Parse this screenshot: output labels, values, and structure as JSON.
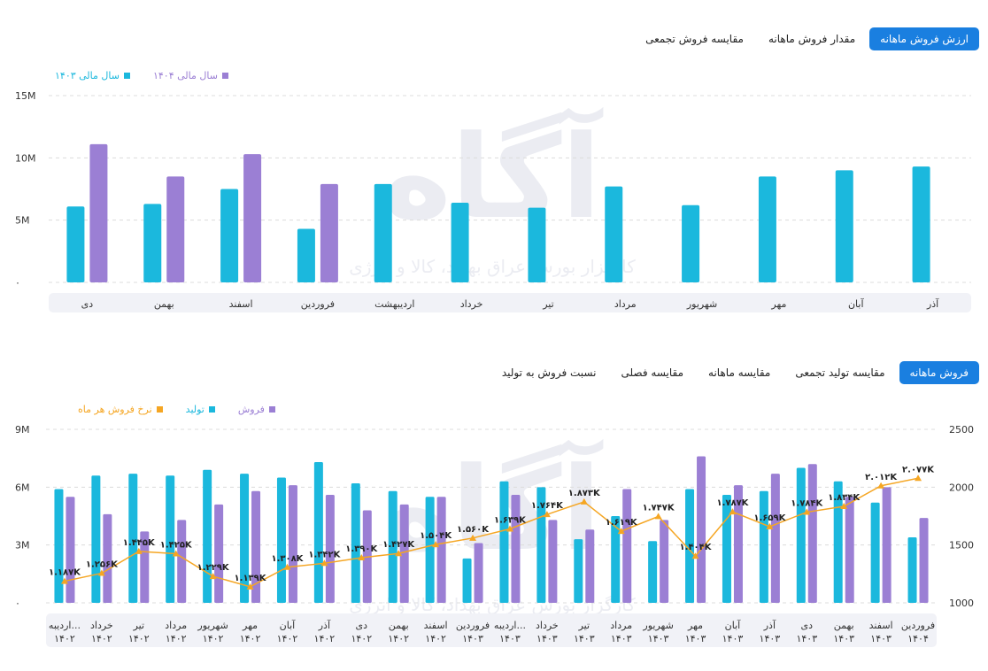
{
  "top_tabs": [
    "ارزش فروش ماهانه",
    "مقدار فروش ماهانه",
    "مقایسه فروش تجمعی"
  ],
  "bottom_tabs": [
    "فروش ماهانه",
    "مقایسه تولید تجمعی",
    "مقایسه ماهانه",
    "مقایسه فصلی",
    "نسبت فروش به تولید"
  ],
  "watermark": {
    "brand": "آگاه",
    "tagline": "کارگزار بورس عراق بهداد، کالا و انرژی"
  },
  "colors": {
    "teal": "#1bb8dd",
    "purple": "#9b7fd4",
    "orange": "#f5a623",
    "active_tab": "#1a7fe0"
  },
  "chart_data": [
    {
      "type": "bar",
      "y_ticks": [
        "۰",
        "5M",
        "10M",
        "15M"
      ],
      "ylim": [
        0,
        15
      ],
      "categories": [
        "دی",
        "بهمن",
        "اسفند",
        "فروردین",
        "اردیبهشت",
        "خرداد",
        "تیر",
        "مرداد",
        "شهریور",
        "مهر",
        "آبان",
        "آذر"
      ],
      "series": [
        {
          "name": "سال مالی ۱۴۰۳",
          "color": "#1bb8dd",
          "values": [
            6.1,
            6.3,
            7.5,
            4.3,
            7.9,
            6.4,
            6.0,
            7.7,
            6.2,
            8.5,
            9.0,
            9.3
          ]
        },
        {
          "name": "سال مالی ۱۴۰۴",
          "color": "#9b7fd4",
          "values": [
            11.1,
            8.5,
            10.3,
            7.9,
            null,
            null,
            null,
            null,
            null,
            null,
            null,
            null
          ]
        }
      ],
      "grid": true,
      "legend_position": "top-left"
    },
    {
      "type": "bar",
      "y_ticks_left": [
        "۰",
        "3M",
        "6M",
        "9M"
      ],
      "ylim_left": [
        0,
        9
      ],
      "y_ticks_right": [
        "1000",
        "1500",
        "2000",
        "2500"
      ],
      "ylim_right": [
        1000,
        2500
      ],
      "categories": [
        [
          "اردیبه...",
          "۱۴۰۲"
        ],
        [
          "خرداد",
          "۱۴۰۲"
        ],
        [
          "تیر",
          "۱۴۰۲"
        ],
        [
          "مرداد",
          "۱۴۰۲"
        ],
        [
          "شهریور",
          "۱۴۰۲"
        ],
        [
          "مهر",
          "۱۴۰۲"
        ],
        [
          "آبان",
          "۱۴۰۲"
        ],
        [
          "آذر",
          "۱۴۰۲"
        ],
        [
          "دی",
          "۱۴۰۲"
        ],
        [
          "بهمن",
          "۱۴۰۲"
        ],
        [
          "اسفند",
          "۱۴۰۲"
        ],
        [
          "فروردین",
          "۱۴۰۳"
        ],
        [
          "اردیبه...",
          "۱۴۰۳"
        ],
        [
          "خرداد",
          "۱۴۰۳"
        ],
        [
          "تیر",
          "۱۴۰۳"
        ],
        [
          "مرداد",
          "۱۴۰۳"
        ],
        [
          "شهریور",
          "۱۴۰۳"
        ],
        [
          "مهر",
          "۱۴۰۳"
        ],
        [
          "آبان",
          "۱۴۰۳"
        ],
        [
          "آذر",
          "۱۴۰۳"
        ],
        [
          "دی",
          "۱۴۰۳"
        ],
        [
          "بهمن",
          "۱۴۰۳"
        ],
        [
          "اسفند",
          "۱۴۰۳"
        ],
        [
          "فروردین",
          "۱۴۰۴"
        ]
      ],
      "series": [
        {
          "name": "تولید",
          "color": "#1bb8dd",
          "values": [
            5.9,
            6.6,
            6.7,
            6.6,
            6.9,
            6.7,
            6.5,
            7.3,
            6.2,
            5.8,
            5.5,
            2.3,
            6.3,
            6.0,
            3.3,
            4.5,
            3.2,
            5.9,
            5.6,
            5.8,
            7.0,
            6.3,
            5.2,
            3.4
          ]
        },
        {
          "name": "فروش",
          "color": "#9b7fd4",
          "values": [
            5.5,
            4.6,
            3.7,
            4.3,
            5.1,
            5.8,
            6.1,
            5.6,
            4.8,
            5.1,
            5.5,
            3.1,
            5.6,
            4.3,
            3.8,
            5.9,
            4.3,
            7.6,
            6.1,
            6.7,
            7.2,
            5.5,
            6.0,
            4.4
          ]
        },
        {
          "name": "نرخ فروش هر ماه",
          "color": "#f5a623",
          "axis": "right",
          "values": [
            1187,
            1256,
            1445,
            1425,
            1229,
            1139,
            1308,
            1342,
            1390,
            1427,
            1504,
            1560,
            1639,
            1764,
            1873,
            1619,
            1747,
            1404,
            1787,
            1659,
            1784,
            1834,
            2012,
            2077
          ]
        }
      ],
      "line_labels": [
        "۱.۱۸۷K",
        "۱.۲۵۶K",
        "۱.۴۴۵K",
        "۱.۴۲۵K",
        "۱.۲۲۹K",
        "۱.۱۳۹K",
        "۱.۳۰۸K",
        "۱.۳۴۲K",
        "۱.۳۹۰K",
        "۱.۴۲۷K",
        "۱.۵۰۴K",
        "۱.۵۶۰K",
        "۱.۶۳۹K",
        "۱.۷۶۴K",
        "۱.۸۷۳K",
        "۱.۶۱۹K",
        "۱.۷۴۷K",
        "۱.۴۰۴K",
        "۱.۷۸۷K",
        "۱.۶۵۹K",
        "۱.۷۸۴K",
        "۱.۸۳۴K",
        "۲.۰۱۲K",
        "۲.۰۷۷K"
      ],
      "grid": true,
      "legend_position": "top-left"
    }
  ]
}
